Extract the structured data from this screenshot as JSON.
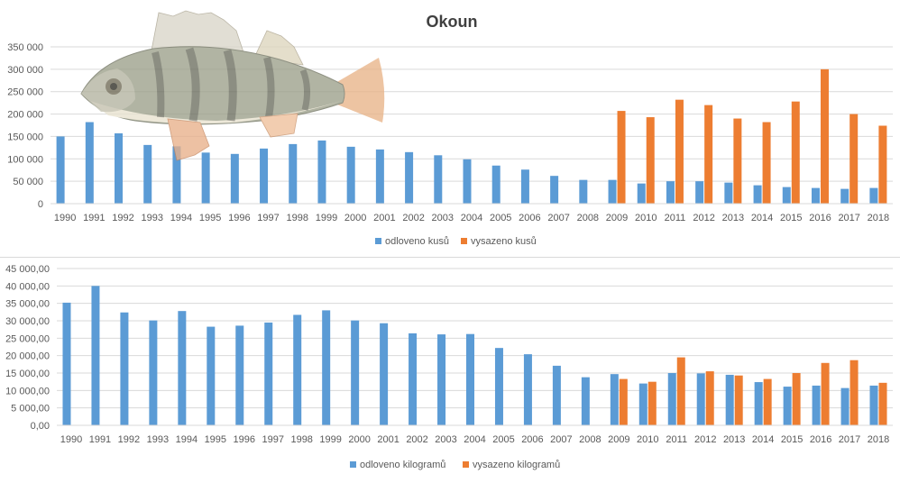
{
  "colors": {
    "blue": "#5b9bd5",
    "orange": "#ed7d31",
    "grid": "#d9d9d9",
    "text": "#595959",
    "title": "#404040"
  },
  "fish_icon": "perch-fish-image",
  "chart_data": [
    {
      "type": "bar",
      "title": "Okoun",
      "ylim": [
        0,
        350000
      ],
      "yticks": [
        "0",
        "50 000",
        "100 000",
        "150 000",
        "200 000",
        "250 000",
        "300 000",
        "350 000"
      ],
      "grid": true,
      "legend_position": "bottom",
      "categories": [
        "1990",
        "1991",
        "1992",
        "1993",
        "1994",
        "1995",
        "1996",
        "1997",
        "1998",
        "1999",
        "2000",
        "2001",
        "2002",
        "2003",
        "2004",
        "2005",
        "2006",
        "2007",
        "2008",
        "2009",
        "2010",
        "2011",
        "2012",
        "2013",
        "2014",
        "2015",
        "2016",
        "2017",
        "2018"
      ],
      "series": [
        {
          "name": "odloveno kusů",
          "color": "#5b9bd5",
          "values": [
            150000,
            182000,
            157000,
            131000,
            128000,
            114000,
            111000,
            123000,
            133000,
            141000,
            127000,
            121000,
            115000,
            108000,
            99000,
            85000,
            76000,
            62000,
            53000,
            53000,
            45000,
            50000,
            50000,
            47000,
            41000,
            37000,
            35000,
            33000,
            35000
          ]
        },
        {
          "name": "vysazeno kusů",
          "color": "#ed7d31",
          "values": [
            null,
            null,
            null,
            null,
            null,
            null,
            null,
            null,
            null,
            null,
            null,
            null,
            null,
            null,
            null,
            null,
            null,
            null,
            null,
            207000,
            193000,
            232000,
            220000,
            190000,
            182000,
            228000,
            300000,
            200000,
            174000
          ]
        }
      ]
    },
    {
      "type": "bar",
      "title": "",
      "ylim": [
        0,
        45000
      ],
      "yticks": [
        "0,00",
        "5 000,00",
        "10 000,00",
        "15 000,00",
        "20 000,00",
        "25 000,00",
        "30 000,00",
        "35 000,00",
        "40 000,00",
        "45 000,00"
      ],
      "grid": true,
      "legend_position": "bottom",
      "categories": [
        "1990",
        "1991",
        "1992",
        "1993",
        "1994",
        "1995",
        "1996",
        "1997",
        "1998",
        "1999",
        "2000",
        "2001",
        "2002",
        "2003",
        "2004",
        "2005",
        "2006",
        "2007",
        "2008",
        "2009",
        "2010",
        "2011",
        "2012",
        "2013",
        "2014",
        "2015",
        "2016",
        "2017",
        "2018"
      ],
      "series": [
        {
          "name": "odloveno kilogramů",
          "color": "#5b9bd5",
          "values": [
            35200,
            40000,
            32400,
            30100,
            32800,
            28300,
            28600,
            29500,
            31700,
            33000,
            30100,
            29300,
            26400,
            26100,
            26200,
            22200,
            20400,
            17100,
            13800,
            14700,
            12000,
            15000,
            14900,
            14500,
            12400,
            11100,
            11400,
            10700,
            11400
          ]
        },
        {
          "name": "vysazeno kilogramů",
          "color": "#ed7d31",
          "values": [
            null,
            null,
            null,
            null,
            null,
            null,
            null,
            null,
            null,
            null,
            null,
            null,
            null,
            null,
            null,
            null,
            null,
            null,
            null,
            13300,
            12500,
            19500,
            15500,
            14300,
            13300,
            15000,
            17900,
            18700,
            12200
          ]
        }
      ]
    }
  ]
}
